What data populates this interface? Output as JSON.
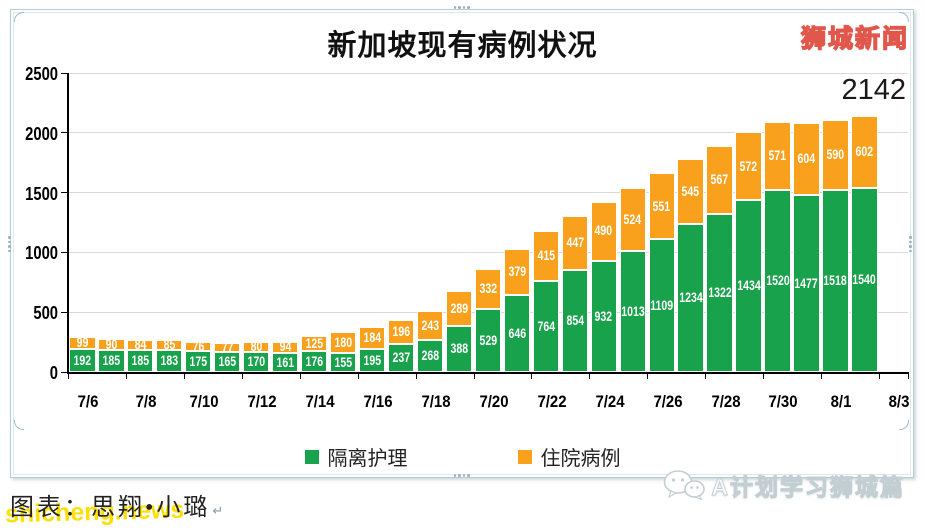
{
  "header": {
    "brand": "狮城新闻"
  },
  "annotation": {
    "latest_total": "2142"
  },
  "chart_data": {
    "type": "bar",
    "stacked": true,
    "title": "新加坡现有病例状况",
    "x_tick_labels": [
      "7/6",
      "7/8",
      "7/10",
      "7/12",
      "7/14",
      "7/16",
      "7/18",
      "7/20",
      "7/22",
      "7/24",
      "7/26",
      "7/28",
      "7/30",
      "8/1",
      "8/3"
    ],
    "n_bars": 28,
    "series": [
      {
        "name": "隔离护理",
        "color": "#18a24b",
        "values": [
          192,
          185,
          185,
          183,
          175,
          165,
          170,
          161,
          176,
          155,
          195,
          237,
          268,
          388,
          529,
          646,
          764,
          854,
          932,
          1013,
          1109,
          1234,
          1322,
          1434,
          1520,
          1477,
          1518,
          1540
        ]
      },
      {
        "name": "住院病例",
        "color": "#f9a11c",
        "values": [
          99,
          90,
          84,
          85,
          76,
          77,
          80,
          94,
          125,
          180,
          184,
          196,
          243,
          289,
          332,
          379,
          415,
          447,
          490,
          524,
          551,
          545,
          567,
          572,
          571,
          604,
          590,
          602
        ]
      }
    ],
    "y_ticks": [
      0,
      500,
      1000,
      1500,
      2000,
      2500
    ],
    "ylim": [
      0,
      2500
    ],
    "grid": true,
    "legend_position": "bottom",
    "value_label_color": "#ffffff",
    "last_bar_total": 2142
  },
  "footer": {
    "credit": "图表：思翔•小璐",
    "return_mark": "↵",
    "watermark": "shicheng.news",
    "account": "A计划学习狮城篇"
  }
}
